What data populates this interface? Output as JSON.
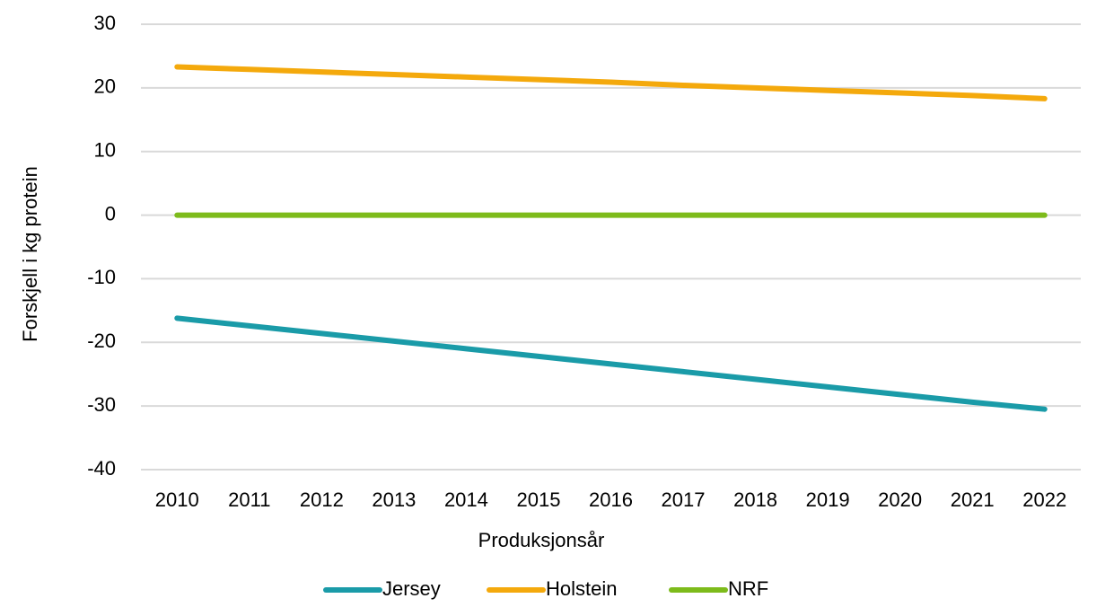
{
  "chart_data": {
    "type": "line",
    "x_label": "Produksjonsår",
    "y_label": "Forskjell i kg protein",
    "categories": [
      "2010",
      "2011",
      "2012",
      "2013",
      "2014",
      "2015",
      "2016",
      "2017",
      "2018",
      "2019",
      "2020",
      "2021",
      "2022"
    ],
    "series": [
      {
        "name": "Jersey",
        "color": "#1a9ba8",
        "values": [
          -16.2,
          -17.4,
          -18.6,
          -19.8,
          -21.0,
          -22.2,
          -23.4,
          -24.6,
          -25.8,
          -27.0,
          -28.2,
          -29.4,
          -30.5
        ]
      },
      {
        "name": "Holstein",
        "color": "#f4a90c",
        "values": [
          23.3,
          22.9,
          22.5,
          22.1,
          21.7,
          21.3,
          20.9,
          20.4,
          20.0,
          19.6,
          19.2,
          18.8,
          18.3
        ]
      },
      {
        "name": "NRF",
        "color": "#7dbb1b",
        "values": [
          0,
          0,
          0,
          0,
          0,
          0,
          0,
          0,
          0,
          0,
          0,
          0,
          0
        ]
      }
    ],
    "ylim": [
      -40,
      30
    ],
    "yticks": [
      -40,
      -30,
      -20,
      -10,
      0,
      10,
      20,
      30
    ],
    "grid": true,
    "legend": "bottom"
  }
}
